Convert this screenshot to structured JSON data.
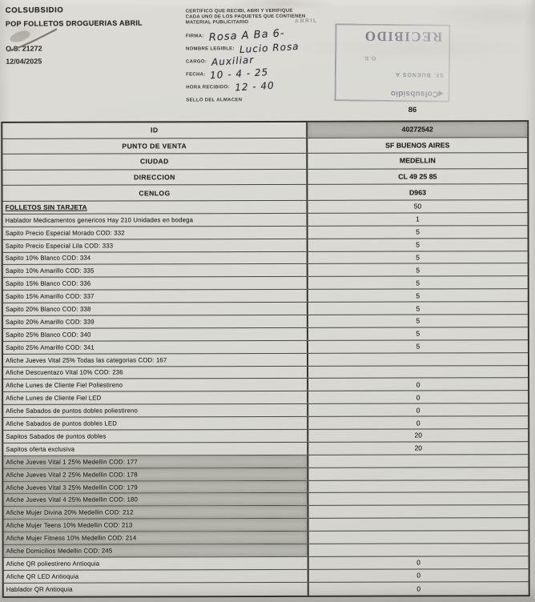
{
  "page": {
    "company": "COLSUBSIDIO",
    "subtitle": "POP FOLLETOS DROGUERIAS ABRIL",
    "order_number": "O.S. 21272",
    "date": "12/04/2025",
    "page_number": "86",
    "faint_mark": "ABRIL"
  },
  "certification": {
    "text": "CERTIFICO QUE RECIBI, ABRI Y VERIFIQUE CADA UNO DE LOS PAQUETES QUE CONTIENEN MATERIAL PUBLICITARIO"
  },
  "receipt_fields": [
    {
      "label": "FIRMA:",
      "value": "Rosa A Ba 6-"
    },
    {
      "label": "NOMBRE LEGIBLE:",
      "value": "Lucio Rosa"
    },
    {
      "label": "CARGO:",
      "value": "Auxiliar"
    },
    {
      "label": "FECHA:",
      "value": "10 - 4 - 25"
    },
    {
      "label": "HORA RECIBIDO:",
      "value": "12 - 40"
    },
    {
      "label": "SELLO DEL ALMACEN",
      "value": ""
    }
  ],
  "stamp": {
    "received": "RECIBIDO",
    "os_label": "O.S.",
    "location": "SF. BUENOS A",
    "brand": "Colsubsidio",
    "brand_mark": "◀"
  },
  "table": {
    "rows": [
      {
        "label": "ID",
        "value": "40272542",
        "type": "meta",
        "value_shaded": true
      },
      {
        "label": "PUNTO DE VENTA",
        "value": "SF BUENOS AIRES",
        "type": "meta"
      },
      {
        "label": "CIUDAD",
        "value": "MEDELLIN",
        "type": "meta"
      },
      {
        "label": "DIRECCION",
        "value": "CL 49 25 85",
        "type": "meta"
      },
      {
        "label": "CENLOG",
        "value": "D963",
        "type": "meta"
      },
      {
        "label": "FOLLETOS SIN TARJETA",
        "value": "50",
        "type": "section"
      },
      {
        "label": "Hablador Medicamentos genericos Hay 210 Unidades en bodega",
        "value": "1",
        "type": "item"
      },
      {
        "label": "Sapito Precio Especial Morado COD: 332",
        "value": "5",
        "type": "item"
      },
      {
        "label": "Sapito Precio Especial Lila COD: 333",
        "value": "5",
        "type": "item"
      },
      {
        "label": "Sapito 10% Blanco COD: 334",
        "value": "5",
        "type": "item"
      },
      {
        "label": "Sapito 10% Amarillo COD: 335",
        "value": "5",
        "type": "item"
      },
      {
        "label": "Sapito 15% Blanco COD: 336",
        "value": "5",
        "type": "item"
      },
      {
        "label": "Sapito 15% Amarillo COD: 337",
        "value": "5",
        "type": "item"
      },
      {
        "label": "Sapito 20% Blanco COD: 338",
        "value": "5",
        "type": "item"
      },
      {
        "label": "Sapito 20% Amarillo COD: 339",
        "value": "5",
        "type": "item"
      },
      {
        "label": "Sapito 25% Blanco COD: 340",
        "value": "5",
        "type": "item"
      },
      {
        "label": "Sapito 25% Amarillo COD: 341",
        "value": "5",
        "type": "item"
      },
      {
        "label": "Afiche Jueves Vital 25% Todas las categorias COD: 167",
        "value": "",
        "type": "item"
      },
      {
        "label": "Afiche Descuentazo Vital 10% COD: 236",
        "value": "",
        "type": "item"
      },
      {
        "label": "Afiche Lunes de Cliente Fiel Poliestireno",
        "value": "0",
        "type": "item"
      },
      {
        "label": "Afiche Lunes de Cliente Fiel LED",
        "value": "0",
        "type": "item"
      },
      {
        "label": "Afiche Sabados de puntos dobles poliestireno",
        "value": "0",
        "type": "item"
      },
      {
        "label": "Afiche Sabados de puntos dobles LED",
        "value": "0",
        "type": "item"
      },
      {
        "label": "Sapitos Sabados de puntos dobles",
        "value": "20",
        "type": "item"
      },
      {
        "label": "Sapitos oferta exclusiva",
        "value": "20",
        "type": "item"
      },
      {
        "label": "Afiche Jueves Vital 1 25% Medellin COD: 177",
        "value": "",
        "type": "shaded"
      },
      {
        "label": "Afiche Jueves Vital 2 25% Medellin COD: 178",
        "value": "",
        "type": "shaded"
      },
      {
        "label": "Afiche Jueves Vital 3 25% Medellin COD: 179",
        "value": "",
        "type": "shaded"
      },
      {
        "label": "Afiche Jueves Vital 4 25% Medellin COD: 180",
        "value": "",
        "type": "shaded"
      },
      {
        "label": "Afiche Mujer Divina 20% Medellin COD: 212",
        "value": "",
        "type": "shaded"
      },
      {
        "label": "Afiche Mujer Teens 10% Medellin COD: 213",
        "value": "",
        "type": "shaded"
      },
      {
        "label": "Afiche Mujer Fitness 10% Medellin COD: 214",
        "value": "",
        "type": "shaded"
      },
      {
        "label": "Afiche Domicilios Medellin COD: 245",
        "value": "",
        "type": "shaded"
      },
      {
        "label": "Afiche QR poliestireno Antioquia",
        "value": "0",
        "type": "item"
      },
      {
        "label": "Afiche QR LED Antioquia",
        "value": "0",
        "type": "item"
      },
      {
        "label": "Hablador QR Antioquia",
        "value": "0",
        "type": "item"
      }
    ]
  },
  "colors": {
    "paper": "#d8d7d1",
    "shaded_cell": "#b5b5ae",
    "border": "#33332d",
    "ink": "#1d1d1a",
    "stamp_ink": "#44445f"
  }
}
